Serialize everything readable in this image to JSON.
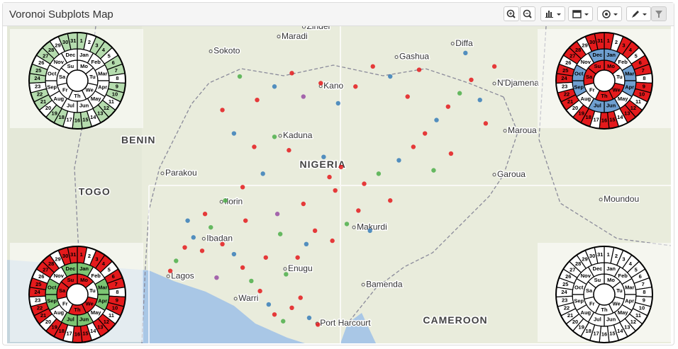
{
  "header": {
    "title": "Voronoi Subplots Map"
  },
  "map": {
    "lonlim": [
      -2.24,
      20.7
    ],
    "latlim": [
      4.34,
      13.8
    ],
    "places": [
      {
        "label": "Maradi",
        "lon": 7.22,
        "lat": 13.49,
        "kind": "city"
      },
      {
        "label": "Zinder",
        "lon": 8.09,
        "lat": 13.78,
        "kind": "city"
      },
      {
        "label": "Diffa",
        "lon": 13.23,
        "lat": 13.28,
        "kind": "city"
      },
      {
        "label": "Sokoto",
        "lon": 4.87,
        "lat": 13.05,
        "kind": "city"
      },
      {
        "label": "Gashua",
        "lon": 11.29,
        "lat": 12.88,
        "kind": "city"
      },
      {
        "label": "Kano",
        "lon": 8.67,
        "lat": 12.01,
        "kind": "city"
      },
      {
        "label": "N'Djamena",
        "lon": 14.67,
        "lat": 12.09,
        "kind": "city"
      },
      {
        "label": "BENIN",
        "lon": 2.3,
        "lat": 10.38,
        "kind": "country"
      },
      {
        "label": "Kaduna",
        "lon": 7.27,
        "lat": 10.53,
        "kind": "city"
      },
      {
        "label": "Maroua",
        "lon": 15.04,
        "lat": 10.68,
        "kind": "city"
      },
      {
        "label": "NIGERIA",
        "lon": 8.67,
        "lat": 9.66,
        "kind": "country"
      },
      {
        "label": "Parakou",
        "lon": 3.2,
        "lat": 9.41,
        "kind": "city"
      },
      {
        "label": "Garoua",
        "lon": 14.67,
        "lat": 9.37,
        "kind": "city"
      },
      {
        "label": "TOGO",
        "lon": 0.78,
        "lat": 8.84,
        "kind": "country"
      },
      {
        "label": "Ilorin",
        "lon": 5.24,
        "lat": 8.56,
        "kind": "city"
      },
      {
        "label": "Moundou",
        "lon": 18.35,
        "lat": 8.63,
        "kind": "city"
      },
      {
        "label": "Ibadan",
        "lon": 4.63,
        "lat": 7.46,
        "kind": "city"
      },
      {
        "label": "Makurdi",
        "lon": 9.82,
        "lat": 7.8,
        "kind": "city"
      },
      {
        "label": "Lagos",
        "lon": 3.4,
        "lat": 6.34,
        "kind": "city"
      },
      {
        "label": "Enugu",
        "lon": 7.44,
        "lat": 6.56,
        "kind": "city"
      },
      {
        "label": "Bamenda",
        "lon": 10.14,
        "lat": 6.09,
        "kind": "city"
      },
      {
        "label": "Warri",
        "lon": 5.73,
        "lat": 5.67,
        "kind": "city"
      },
      {
        "label": "Port Harcourt",
        "lon": 8.55,
        "lat": 4.93,
        "kind": "city"
      },
      {
        "label": "CAMEROON",
        "lon": 13.25,
        "lat": 5.01,
        "kind": "country"
      }
    ],
    "point_colors": [
      "#e41a1c",
      "#377eb8",
      "#4daf4a",
      "#984ea3"
    ],
    "points": [
      [
        3.4,
        6.5,
        0
      ],
      [
        3.6,
        6.8,
        2
      ],
      [
        3.9,
        7.2,
        0
      ],
      [
        4.2,
        7.5,
        1
      ],
      [
        4.5,
        7.1,
        0
      ],
      [
        4.8,
        7.8,
        2
      ],
      [
        5.2,
        7.3,
        0
      ],
      [
        5.6,
        7.0,
        1
      ],
      [
        5.9,
        6.6,
        0
      ],
      [
        6.2,
        6.2,
        2
      ],
      [
        6.5,
        5.9,
        0
      ],
      [
        6.8,
        5.5,
        1
      ],
      [
        7.0,
        5.2,
        0
      ],
      [
        7.3,
        5.0,
        2
      ],
      [
        7.6,
        5.4,
        0
      ],
      [
        7.9,
        5.7,
        0
      ],
      [
        8.2,
        5.1,
        1
      ],
      [
        8.5,
        4.9,
        0
      ],
      [
        7.4,
        6.4,
        2
      ],
      [
        7.8,
        6.9,
        0
      ],
      [
        8.1,
        7.3,
        1
      ],
      [
        8.4,
        7.7,
        0
      ],
      [
        9.0,
        7.4,
        0
      ],
      [
        9.5,
        7.9,
        2
      ],
      [
        9.9,
        8.3,
        0
      ],
      [
        10.3,
        7.7,
        1
      ],
      [
        9.1,
        8.9,
        0
      ],
      [
        8.9,
        9.3,
        0
      ],
      [
        9.3,
        9.6,
        0
      ],
      [
        8.7,
        9.9,
        1
      ],
      [
        10.1,
        9.1,
        0
      ],
      [
        10.6,
        9.4,
        2
      ],
      [
        11.0,
        8.6,
        0
      ],
      [
        11.3,
        9.8,
        1
      ],
      [
        11.8,
        10.2,
        0
      ],
      [
        12.2,
        10.6,
        0
      ],
      [
        12.6,
        11.0,
        1
      ],
      [
        13.0,
        11.4,
        0
      ],
      [
        13.4,
        11.8,
        2
      ],
      [
        13.8,
        12.2,
        0
      ],
      [
        14.1,
        11.6,
        1
      ],
      [
        14.3,
        10.9,
        0
      ],
      [
        13.1,
        10.0,
        0
      ],
      [
        12.5,
        9.5,
        2
      ],
      [
        11.6,
        11.7,
        0
      ],
      [
        11.0,
        12.3,
        1
      ],
      [
        10.4,
        12.6,
        0
      ],
      [
        9.8,
        12.0,
        0
      ],
      [
        9.2,
        11.5,
        1
      ],
      [
        8.6,
        12.1,
        0
      ],
      [
        8.0,
        11.7,
        3
      ],
      [
        7.6,
        12.4,
        0
      ],
      [
        7.0,
        12.0,
        1
      ],
      [
        6.4,
        11.6,
        0
      ],
      [
        5.8,
        12.3,
        2
      ],
      [
        5.2,
        11.3,
        0
      ],
      [
        5.6,
        10.6,
        1
      ],
      [
        6.3,
        10.2,
        0
      ],
      [
        7.0,
        10.5,
        2
      ],
      [
        7.5,
        10.1,
        0
      ],
      [
        6.6,
        9.4,
        1
      ],
      [
        5.9,
        9.0,
        0
      ],
      [
        5.3,
        8.6,
        2
      ],
      [
        4.6,
        8.2,
        0
      ],
      [
        4.0,
        8.0,
        1
      ],
      [
        6.0,
        8.0,
        0
      ],
      [
        7.1,
        8.2,
        3
      ],
      [
        8.0,
        8.5,
        0
      ],
      [
        12.0,
        12.5,
        0
      ],
      [
        13.6,
        13.0,
        1
      ],
      [
        14.6,
        12.6,
        0
      ],
      [
        5.0,
        6.3,
        3
      ],
      [
        6.7,
        6.9,
        0
      ],
      [
        7.2,
        7.6,
        2
      ]
    ]
  },
  "calendar": {
    "weekdays": [
      "Mo",
      "Tu",
      "We",
      "Th",
      "Fr",
      "Sa",
      "Su"
    ],
    "months": [
      "Jan",
      "Feb",
      "Mar",
      "Apr",
      "May",
      "Jun",
      "Jul",
      "Aug",
      "Sep",
      "Oct",
      "Nov",
      "Dec"
    ],
    "days": [
      1,
      2,
      3,
      4,
      5,
      6,
      7,
      8,
      9,
      10,
      11,
      12,
      13,
      14,
      15,
      16,
      17,
      18,
      19,
      20,
      21,
      22,
      23,
      24,
      25,
      26,
      27,
      28,
      29,
      30,
      31
    ],
    "subplots": [
      {
        "corner": "top-left",
        "ring_fills": [
          "#ffffff",
          "#ffffff",
          "#b5dcae"
        ]
      },
      {
        "corner": "top-right",
        "ring_fills": [
          "#e41a1c",
          "#6f9fd0",
          "#e41a1c"
        ]
      },
      {
        "corner": "bottom-left",
        "ring_fills": [
          "#e41a1c",
          "#7cc573",
          "#e41a1c"
        ]
      },
      {
        "corner": "bottom-right",
        "ring_fills": [
          "#ffffff",
          "#ffffff",
          "#ffffff"
        ]
      }
    ]
  }
}
